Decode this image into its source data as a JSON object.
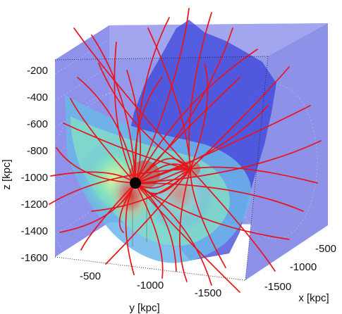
{
  "chart_data": {
    "type": "3d-volume-streamlines",
    "title": "",
    "zlabel": "z [kpc]",
    "ylabel": "y [kpc]",
    "xlabel": "x [kpc]",
    "z_ticks": [
      "-200",
      "-400",
      "-600",
      "-800",
      "-1000",
      "-1200",
      "-1400",
      "-1600"
    ],
    "y_ticks": [
      "-500",
      "-1000",
      "-1500"
    ],
    "x_ticks": [
      "-500",
      "-1000",
      "-1500"
    ],
    "zlim": [
      -1600,
      -100
    ],
    "ylim": [
      -1800,
      -200
    ],
    "xlim": [
      -1800,
      -200
    ],
    "streamline_color": "#e8141a",
    "slice_colormap": "jet",
    "background_face_color": "#8f93ea",
    "point_source": {
      "label": "",
      "color": "#000000"
    },
    "grid": true
  }
}
